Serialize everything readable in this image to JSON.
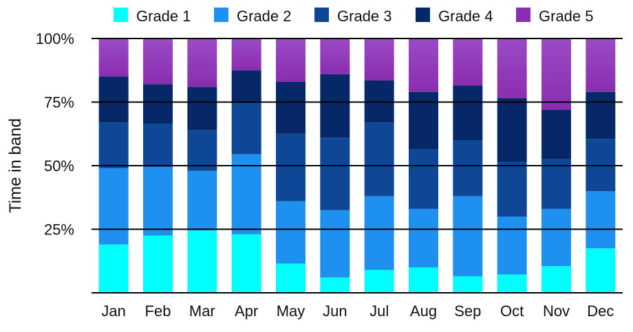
{
  "chart_data": {
    "type": "bar",
    "stacked": true,
    "normalized": true,
    "title": "",
    "xlabel": "",
    "ylabel": "Time in band",
    "ylim": [
      0,
      100
    ],
    "y_ticks": [
      "25%",
      "50%",
      "75%",
      "100%"
    ],
    "y_tick_values": [
      25,
      50,
      75,
      100
    ],
    "grid": true,
    "legend_position": "top",
    "categories": [
      "Jan",
      "Feb",
      "Mar",
      "Apr",
      "May",
      "Jun",
      "Jul",
      "Aug",
      "Sep",
      "Oct",
      "Nov",
      "Dec"
    ],
    "series": [
      {
        "name": "Grade 1",
        "color": "#00ffff",
        "values": [
          19,
          22.5,
          24.5,
          23,
          11.5,
          6,
          9,
          10,
          6.5,
          7.2,
          10.5,
          17.5
        ]
      },
      {
        "name": "Grade 2",
        "color": "#1e90f0",
        "values": [
          30,
          27,
          23.5,
          31.5,
          24.5,
          26.5,
          29,
          23,
          31.5,
          22.8,
          22.5,
          22.5
        ]
      },
      {
        "name": "Grade 3",
        "color": "#0d4796",
        "values": [
          18,
          17,
          16,
          20,
          26.5,
          28.5,
          29,
          23.5,
          22,
          21.5,
          19.5,
          20.5
        ]
      },
      {
        "name": "Grade 4",
        "color": "#062768",
        "values": [
          18,
          15.5,
          17,
          13,
          20.5,
          25,
          16.5,
          22.5,
          21.5,
          25,
          19.5,
          18.5
        ]
      },
      {
        "name": "Grade 5",
        "color": "#8a2db0",
        "values": [
          15,
          18,
          19,
          12.5,
          17,
          14,
          16.5,
          21,
          18.5,
          23.5,
          28,
          21
        ]
      }
    ]
  }
}
